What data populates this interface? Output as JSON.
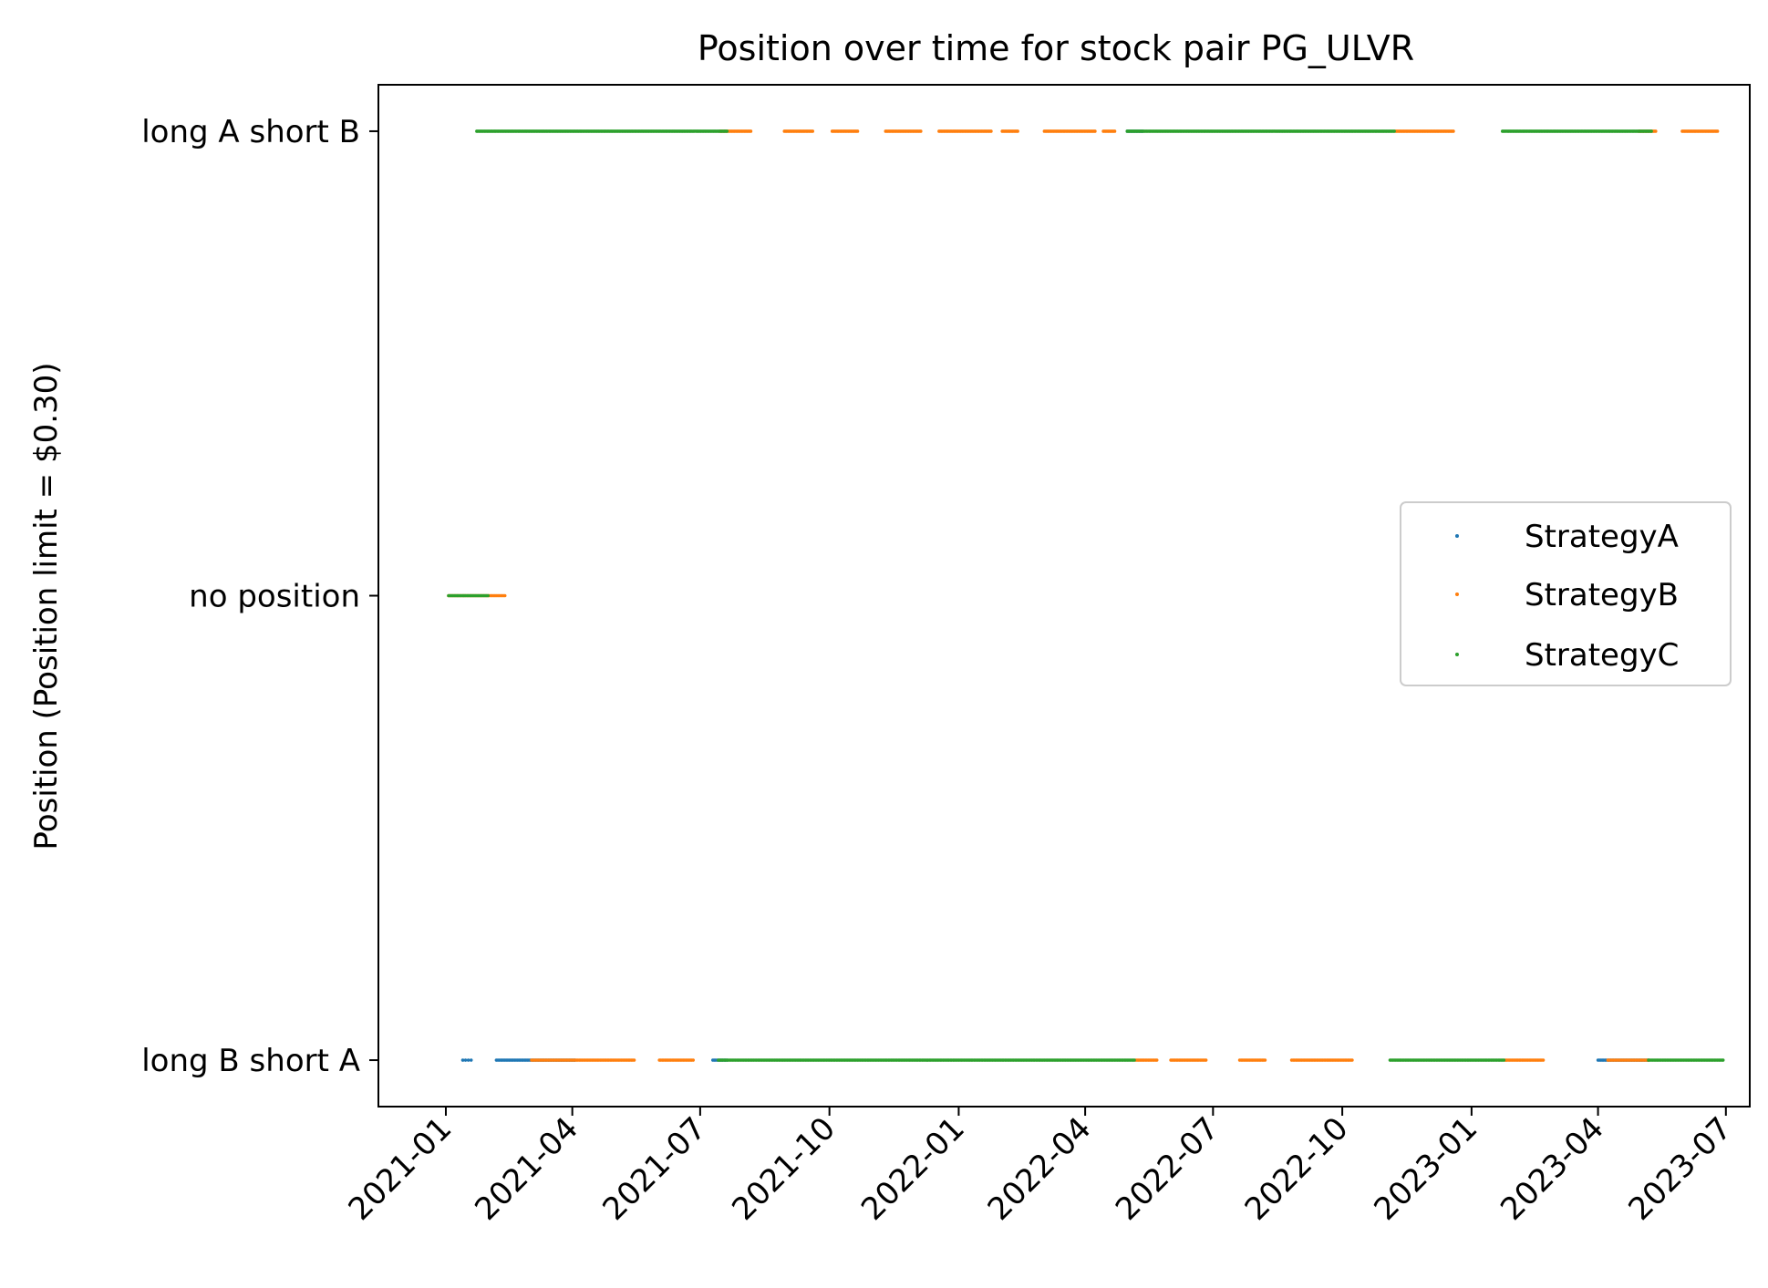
{
  "chart_data": {
    "type": "scatter",
    "title": "Position over time for stock pair PG_ULVR",
    "xlabel": "",
    "ylabel": "Position (Position limit = $0.30)",
    "xlim": [
      "2020-11-14",
      "2023-07-18"
    ],
    "ylim": [
      -1.1,
      1.1
    ],
    "x_ticks": [
      "2021-01",
      "2021-04",
      "2021-07",
      "2021-10",
      "2022-01",
      "2022-04",
      "2022-07",
      "2022-10",
      "2023-01",
      "2023-04",
      "2023-07"
    ],
    "y_ticks": [
      {
        "value": 1,
        "label": "long A short B"
      },
      {
        "value": 0,
        "label": "no position"
      },
      {
        "value": -1,
        "label": "long B short A"
      }
    ],
    "grid": false,
    "legend_position": "center-right",
    "series": [
      {
        "name": "StrategyA",
        "color": "#1f77b4",
        "segments": [
          {
            "y": -1,
            "start": "2021-01-13",
            "end": "2021-01-20",
            "step_days": 2
          },
          {
            "y": -1,
            "start": "2021-02-06",
            "end": "2021-04-03",
            "step_days": 1
          },
          {
            "y": -1,
            "start": "2021-07-10",
            "end": "2021-07-20",
            "step_days": 1
          },
          {
            "y": 1,
            "start": "2022-05-01",
            "end": "2022-05-12",
            "step_days": 1
          },
          {
            "y": -1,
            "start": "2023-04-01",
            "end": "2023-05-07",
            "step_days": 1
          }
        ]
      },
      {
        "name": "StrategyB",
        "color": "#ff7f0e",
        "segments": [
          {
            "y": 0,
            "start": "2021-01-03",
            "end": "2021-02-12",
            "step_days": 1
          },
          {
            "y": 1,
            "start": "2021-07-15",
            "end": "2021-08-06",
            "step_days": 1
          },
          {
            "y": 1,
            "start": "2021-08-30",
            "end": "2021-09-19",
            "step_days": 1
          },
          {
            "y": 1,
            "start": "2021-10-03",
            "end": "2021-10-21",
            "step_days": 1
          },
          {
            "y": 1,
            "start": "2021-11-10",
            "end": "2021-12-05",
            "step_days": 1
          },
          {
            "y": 1,
            "start": "2021-12-18",
            "end": "2022-01-24",
            "step_days": 1
          },
          {
            "y": 1,
            "start": "2022-02-01",
            "end": "2022-02-12",
            "step_days": 1
          },
          {
            "y": 1,
            "start": "2022-03-03",
            "end": "2022-04-08",
            "step_days": 1
          },
          {
            "y": 1,
            "start": "2022-04-14",
            "end": "2022-04-22",
            "step_days": 1
          },
          {
            "y": 1,
            "start": "2022-11-08",
            "end": "2022-12-19",
            "step_days": 1
          },
          {
            "y": 1,
            "start": "2023-04-30",
            "end": "2023-05-12",
            "step_days": 1
          },
          {
            "y": 1,
            "start": "2023-05-31",
            "end": "2023-06-25",
            "step_days": 1
          },
          {
            "y": -1,
            "start": "2021-03-03",
            "end": "2021-04-03",
            "step_days": 1
          },
          {
            "y": -1,
            "start": "2021-04-04",
            "end": "2021-05-15",
            "step_days": 1
          },
          {
            "y": -1,
            "start": "2021-06-02",
            "end": "2021-06-26",
            "step_days": 1
          },
          {
            "y": -1,
            "start": "2022-05-07",
            "end": "2022-05-22",
            "step_days": 1
          },
          {
            "y": -1,
            "start": "2022-06-01",
            "end": "2022-06-26",
            "step_days": 1
          },
          {
            "y": -1,
            "start": "2022-07-20",
            "end": "2022-08-07",
            "step_days": 1
          },
          {
            "y": -1,
            "start": "2022-08-26",
            "end": "2022-10-08",
            "step_days": 1
          },
          {
            "y": -1,
            "start": "2023-01-25",
            "end": "2023-02-21",
            "step_days": 1
          },
          {
            "y": -1,
            "start": "2023-04-08",
            "end": "2023-05-07",
            "step_days": 1
          }
        ]
      },
      {
        "name": "StrategyC",
        "color": "#2ca02c",
        "segments": [
          {
            "y": 0,
            "start": "2021-01-03",
            "end": "2021-01-31",
            "step_days": 1
          },
          {
            "y": 1,
            "start": "2021-01-23",
            "end": "2021-07-20",
            "step_days": 1
          },
          {
            "y": 1,
            "start": "2022-05-01",
            "end": "2022-11-07",
            "step_days": 1
          },
          {
            "y": 1,
            "start": "2023-01-23",
            "end": "2023-05-09",
            "step_days": 1
          },
          {
            "y": -1,
            "start": "2021-07-14",
            "end": "2022-05-06",
            "step_days": 1
          },
          {
            "y": -1,
            "start": "2022-11-04",
            "end": "2023-01-24",
            "step_days": 1
          },
          {
            "y": -1,
            "start": "2023-05-07",
            "end": "2023-06-29",
            "step_days": 1
          }
        ]
      }
    ]
  }
}
